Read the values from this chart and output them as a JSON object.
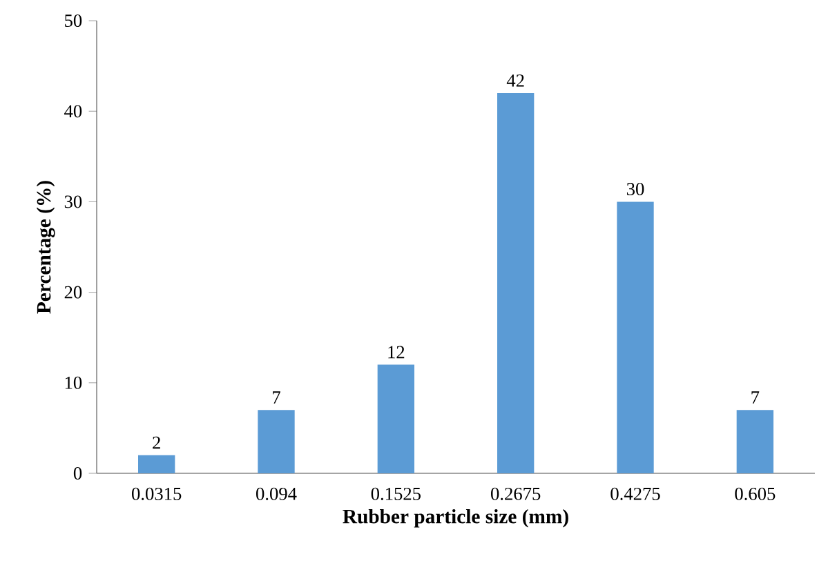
{
  "chart_data": {
    "type": "bar",
    "xlabel": "Rubber particle size (mm)",
    "ylabel": "Percentage (%)",
    "categories": [
      "0.0315",
      "0.094",
      "0.1525",
      "0.2675",
      "0.4275",
      "0.605"
    ],
    "values": [
      2,
      7,
      12,
      42,
      30,
      7
    ],
    "color": "#5b9bd5",
    "ylim": [
      0,
      50
    ],
    "yticks": [
      0,
      10,
      20,
      30,
      40,
      50
    ],
    "data_labels": true
  }
}
